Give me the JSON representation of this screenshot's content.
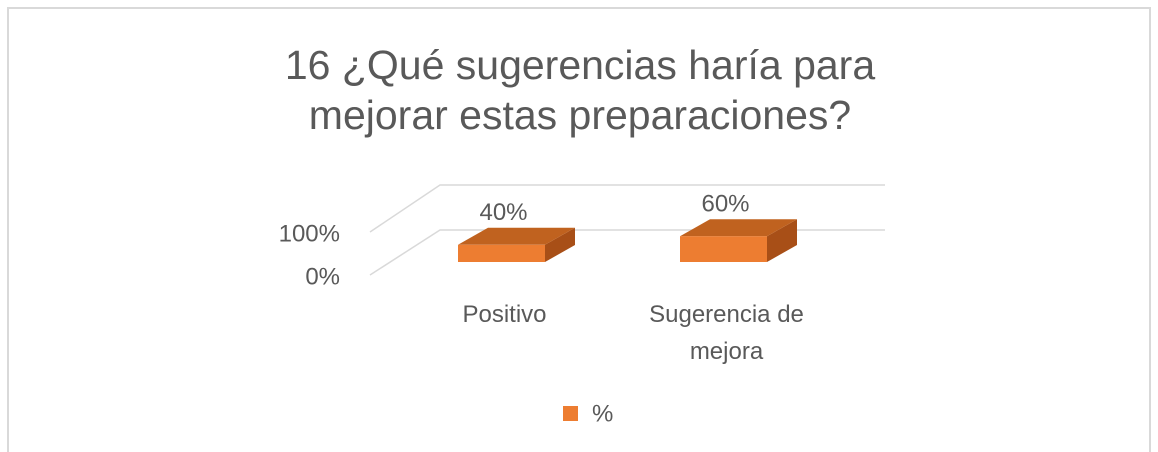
{
  "chart_data": {
    "type": "bar3d",
    "title": "16 ¿Qué sugerencias haría para mejorar estas preparaciones?",
    "categories": [
      "Positivo",
      "Sugerencia de mejora"
    ],
    "series": [
      {
        "name": "%",
        "color": "#ed7d31",
        "values": [
          40,
          60
        ],
        "value_labels": [
          "40%",
          "60%"
        ]
      }
    ],
    "ylim": [
      0,
      100
    ],
    "yticks": [
      {
        "value": 0,
        "label": "0%"
      },
      {
        "value": 100,
        "label": "100%"
      }
    ],
    "grid": true,
    "legend": "bottom"
  }
}
